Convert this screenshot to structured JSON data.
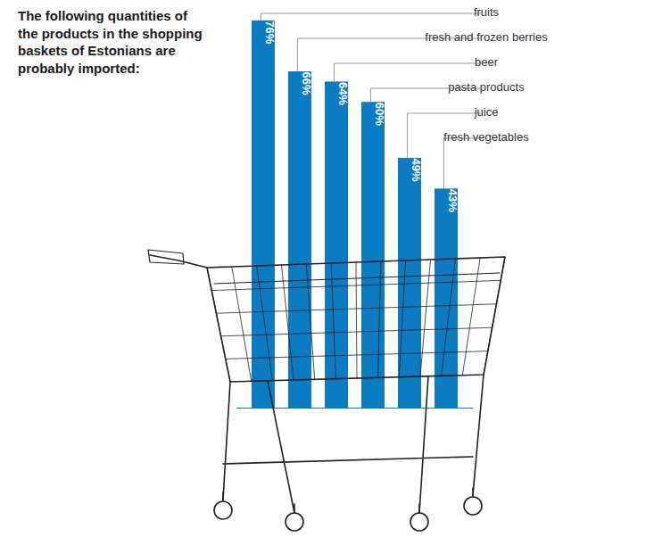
{
  "chart_data": {
    "type": "bar",
    "title": "The following quantities of the products in the shopping baskets of Estonians are probably imported:",
    "categories": [
      "fruits",
      "fresh and frozen berries",
      "beer",
      "pasta products",
      "juice",
      "fresh vegetables"
    ],
    "values": [
      76,
      66,
      64,
      60,
      49,
      43
    ],
    "value_labels": [
      "76%",
      "66%",
      "64%",
      "60%",
      "49%",
      "43%"
    ],
    "color": "#0b7cc1",
    "ylim": [
      0,
      80
    ],
    "yticks": [],
    "data_labels": true,
    "tick_labels": false,
    "grid": false
  }
}
